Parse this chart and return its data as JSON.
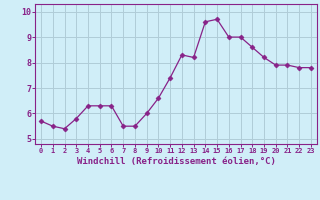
{
  "x": [
    0,
    1,
    2,
    3,
    4,
    5,
    6,
    7,
    8,
    9,
    10,
    11,
    12,
    13,
    14,
    15,
    16,
    17,
    18,
    19,
    20,
    21,
    22,
    23
  ],
  "y": [
    5.7,
    5.5,
    5.4,
    5.8,
    6.3,
    6.3,
    6.3,
    5.5,
    5.5,
    6.0,
    6.6,
    7.4,
    8.3,
    8.2,
    9.6,
    9.7,
    9.0,
    9.0,
    8.6,
    8.2,
    7.9,
    7.9,
    7.8,
    7.8
  ],
  "line_color": "#882288",
  "marker": "D",
  "marker_size": 2.5,
  "bg_color": "#d0eef8",
  "grid_color": "#b0ccd8",
  "xlabel": "Windchill (Refroidissement éolien,°C)",
  "xlabel_color": "#882288",
  "tick_color": "#882288",
  "spine_color": "#882288",
  "ylim": [
    4.8,
    10.3
  ],
  "yticks": [
    5,
    6,
    7,
    8,
    9,
    10
  ],
  "xtick_fontsize": 5.0,
  "ytick_fontsize": 6.0,
  "xlabel_fontsize": 6.5
}
